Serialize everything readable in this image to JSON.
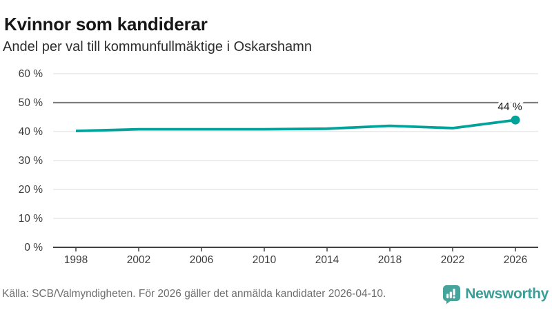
{
  "header": {
    "title": "Kvinnor som kandiderar",
    "subtitle": "Andel per val till kommunfullmäktige i Oskarshamn"
  },
  "chart_data": {
    "type": "line",
    "title": "Kvinnor som kandiderar",
    "subtitle": "Andel per val till kommunfullmäktige i Oskarshamn",
    "x": [
      1998,
      2002,
      2006,
      2010,
      2014,
      2018,
      2022,
      2026
    ],
    "xticklabels": [
      "1998",
      "2002",
      "2006",
      "2010",
      "2014",
      "2018",
      "2022",
      "2026"
    ],
    "values": [
      40.2,
      40.8,
      40.8,
      40.8,
      41.0,
      42.0,
      41.2,
      44
    ],
    "unit": "%",
    "ylim": [
      0,
      60
    ],
    "yticks": [
      0,
      10,
      20,
      30,
      40,
      50,
      60
    ],
    "yticklabels": [
      "0 %",
      "10 %",
      "20 %",
      "30 %",
      "40 %",
      "50 %",
      "60 %"
    ],
    "reference_line_y": 50,
    "grid": true,
    "legend": "none",
    "end_point_label": "44 %",
    "line_color": "#00a29a",
    "gridline_color": "#e2e2e2",
    "reference_line_color": "#7d7d7d",
    "axis_color": "#404040",
    "tick_label_color": "#3d3d3d",
    "end_label_color": "#1e1e1e"
  },
  "footer": {
    "source": "Källa: SCB/Valmyndigheten. För 2026 gäller det anmälda kandidater 2026-04-10.",
    "brand": "Newsworthy",
    "brand_color": "#3a9e97",
    "badge_color": "#46a49d"
  }
}
